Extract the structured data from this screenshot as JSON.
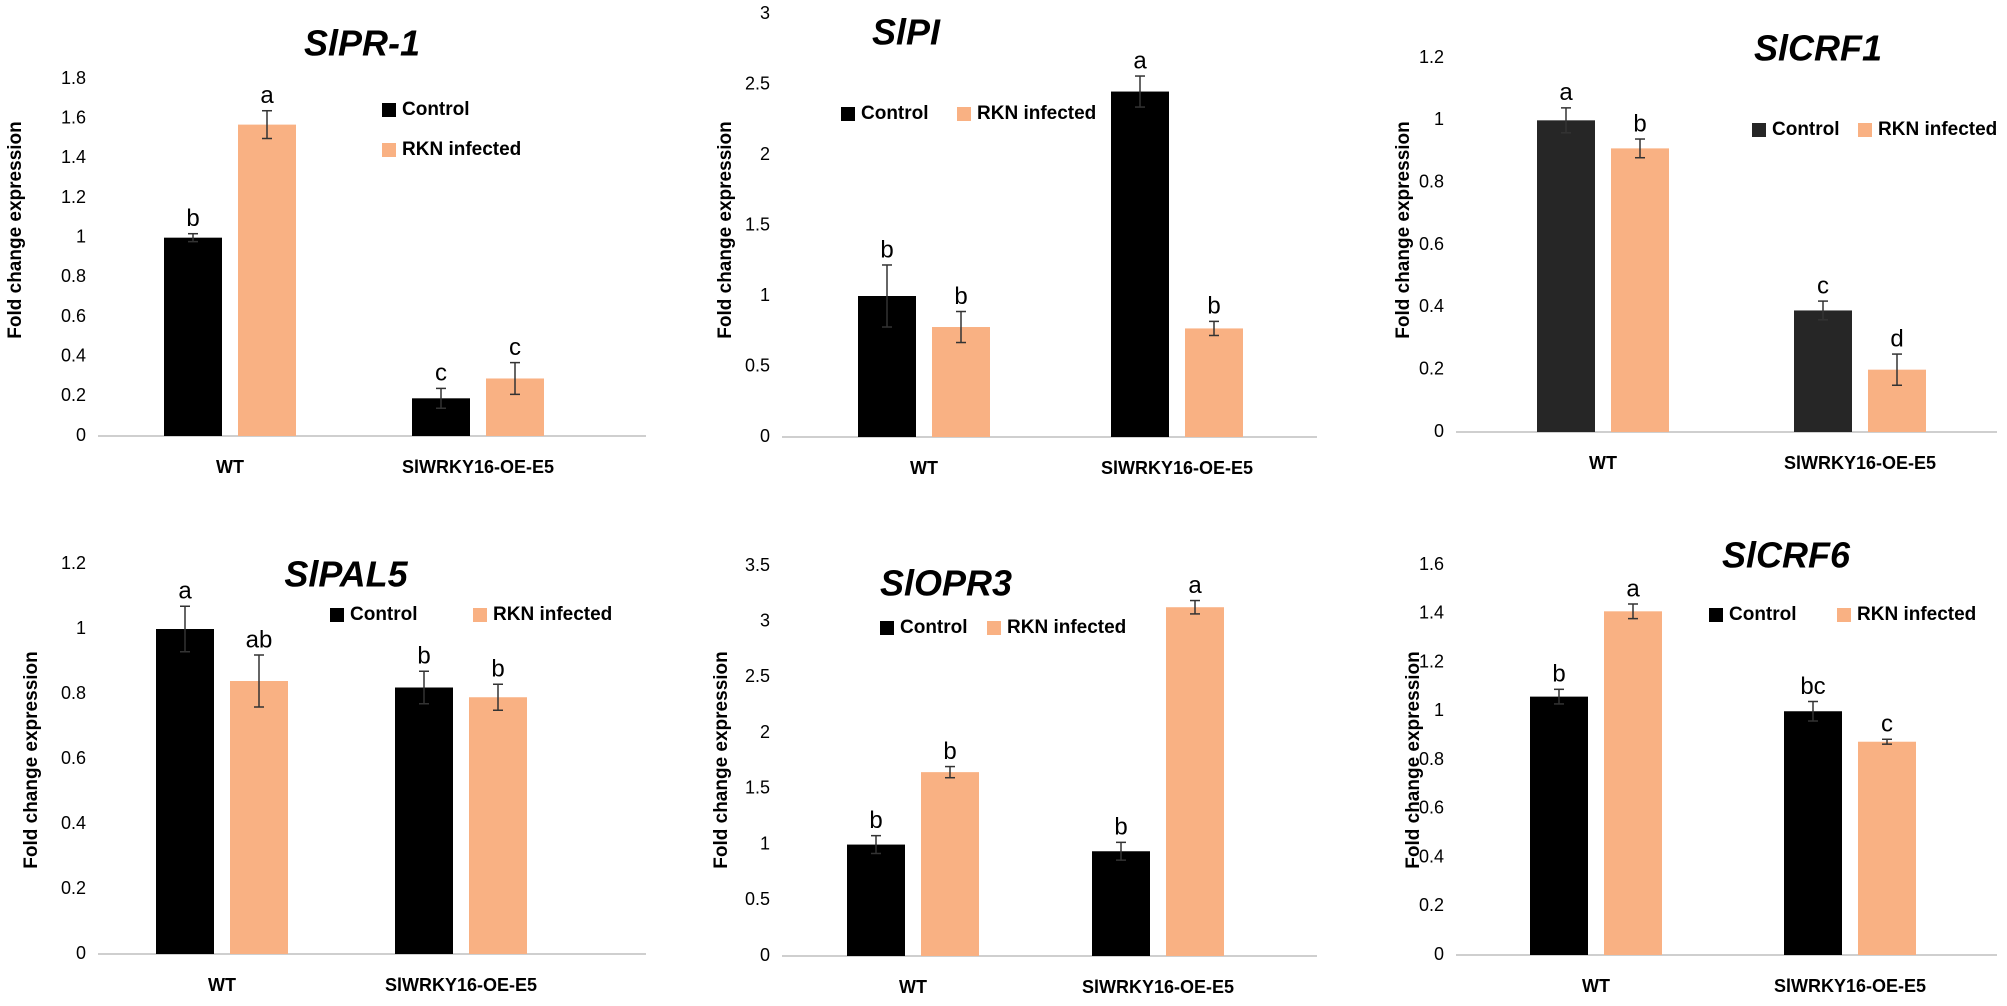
{
  "colors": {
    "control": "#000000",
    "control_alt": "#262626",
    "infected": "#F9B183",
    "axis": "#BFBFBF",
    "errorbar": "#333333"
  },
  "chart_data": [
    {
      "type": "bar",
      "title": "SlPR-1",
      "ylabel": "Fold change expression",
      "categories": [
        "WT",
        "SlWRKY16-OE-E5"
      ],
      "ylim": [
        0,
        1.8
      ],
      "yticks": [
        "0",
        "0.2",
        "0.4",
        "0.6",
        "0.8",
        "1",
        "1.2",
        "1.4",
        "1.6",
        "1.8"
      ],
      "legend": "top-right",
      "series": [
        {
          "name": "Control",
          "values": [
            1.0,
            0.19
          ],
          "errors": [
            0.02,
            0.05
          ],
          "letters": [
            "b",
            "c"
          ]
        },
        {
          "name": "RKN infected",
          "values": [
            1.57,
            0.29
          ],
          "errors": [
            0.07,
            0.08
          ],
          "letters": [
            "a",
            "c"
          ]
        }
      ]
    },
    {
      "type": "bar",
      "title": "SlPI",
      "ylabel": "Fold change expression",
      "categories": [
        "WT",
        "SlWRKY16-OE-E5"
      ],
      "ylim": [
        0,
        3
      ],
      "yticks": [
        "0",
        "0.5",
        "1",
        "1.5",
        "2",
        "2.5",
        "3"
      ],
      "legend": "top-left",
      "series": [
        {
          "name": "Control",
          "values": [
            1.0,
            2.45
          ],
          "errors": [
            0.22,
            0.11
          ],
          "letters": [
            "b",
            "a"
          ]
        },
        {
          "name": "RKN infected",
          "values": [
            0.78,
            0.77
          ],
          "errors": [
            0.11,
            0.05
          ],
          "letters": [
            "b",
            "b"
          ]
        }
      ]
    },
    {
      "type": "bar",
      "title": "SlCRF1",
      "ylabel": "Fold change expression",
      "categories": [
        "WT",
        "SlWRKY16-OE-E5"
      ],
      "ylim": [
        0,
        1.2
      ],
      "yticks": [
        "0",
        "0.2",
        "0.4",
        "0.6",
        "0.8",
        "1",
        "1.2"
      ],
      "legend": "top-right",
      "series": [
        {
          "name": "Control",
          "values": [
            1.0,
            0.39
          ],
          "errors": [
            0.04,
            0.03
          ],
          "letters": [
            "a",
            "c"
          ]
        },
        {
          "name": "RKN infected",
          "values": [
            0.91,
            0.2
          ],
          "errors": [
            0.03,
            0.05
          ],
          "letters": [
            "b",
            "d"
          ]
        }
      ]
    },
    {
      "type": "bar",
      "title": "SlPAL5",
      "ylabel": "Fold change expression",
      "categories": [
        "WT",
        "SlWRKY16-OE-E5"
      ],
      "ylim": [
        0,
        1.2
      ],
      "yticks": [
        "0",
        "0.2",
        "0.4",
        "0.6",
        "0.8",
        "1",
        "1.2"
      ],
      "legend": "top-right",
      "series": [
        {
          "name": "Control",
          "values": [
            1.0,
            0.82
          ],
          "errors": [
            0.07,
            0.05
          ],
          "letters": [
            "a",
            "b"
          ]
        },
        {
          "name": "RKN infected",
          "values": [
            0.84,
            0.79
          ],
          "errors": [
            0.08,
            0.04
          ],
          "letters": [
            "ab",
            "b"
          ]
        }
      ]
    },
    {
      "type": "bar",
      "title": "SlOPR3",
      "ylabel": "Fold change expression",
      "categories": [
        "WT",
        "SlWRKY16-OE-E5"
      ],
      "ylim": [
        0,
        3.5
      ],
      "yticks": [
        "0",
        "0.5",
        "1",
        "1.5",
        "2",
        "2.5",
        "3",
        "3.5"
      ],
      "legend": "top-left",
      "series": [
        {
          "name": "Control",
          "values": [
            1.0,
            0.94
          ],
          "errors": [
            0.08,
            0.08
          ],
          "letters": [
            "b",
            "b"
          ]
        },
        {
          "name": "RKN infected",
          "values": [
            1.65,
            3.13
          ],
          "errors": [
            0.05,
            0.06
          ],
          "letters": [
            "b",
            "a"
          ]
        }
      ]
    },
    {
      "type": "bar",
      "title": "SlCRF6",
      "ylabel": "Fold change expression",
      "categories": [
        "WT",
        "SlWRKY16-OE-E5"
      ],
      "ylim": [
        0,
        1.6
      ],
      "yticks": [
        "0",
        "0.2",
        "0.4",
        "0.6",
        "0.8",
        "1",
        "1.2",
        "1.4",
        "1.6"
      ],
      "legend": "top-right",
      "series": [
        {
          "name": "Control",
          "values": [
            1.06,
            1.0
          ],
          "errors": [
            0.03,
            0.04
          ],
          "letters": [
            "b",
            "bc"
          ]
        },
        {
          "name": "RKN infected",
          "values": [
            1.41,
            0.875
          ],
          "errors": [
            0.03,
            0.01
          ],
          "letters": [
            "a",
            "c"
          ]
        }
      ]
    }
  ]
}
